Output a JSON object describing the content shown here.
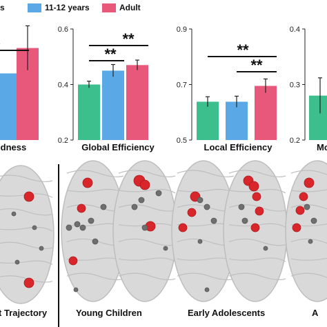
{
  "legend": {
    "items": [
      {
        "label": "11-12 years",
        "color": "#5aa9e6"
      },
      {
        "label": "Adult",
        "color": "#e8587a"
      }
    ]
  },
  "colors": {
    "group1": "#3cbf8c",
    "group2": "#5aa9e6",
    "group3": "#e8587a",
    "node_red": "#d8262b",
    "node_gray": "#6f6f6f"
  },
  "chart_data": [
    {
      "type": "bar",
      "title": "rldness",
      "categories": [
        "",
        "11-12 years",
        "Adult"
      ],
      "values": [
        null,
        1.42,
        1.58
      ],
      "errors": [
        null,
        0,
        0.14
      ],
      "significance": [
        {
          "label": "*",
          "bracket": "wide"
        }
      ]
    },
    {
      "type": "bar",
      "title": "Global Efficiency",
      "categories": [
        "",
        "11-12 years",
        "Adult"
      ],
      "values": [
        0.4,
        0.45,
        0.47
      ],
      "errors": [
        0.012,
        0.022,
        0.018
      ],
      "ylim": [
        0.2,
        0.6
      ],
      "yticks": [
        "0.2",
        "0.4",
        "0.6"
      ],
      "significance": [
        {
          "label": "**",
          "bars": [
            0,
            2
          ]
        },
        {
          "label": "**",
          "bars": [
            0,
            1
          ]
        }
      ]
    },
    {
      "type": "bar",
      "title": "Local Efficiency",
      "categories": [
        "",
        "11-12 years",
        "Adult"
      ],
      "values": [
        0.638,
        0.638,
        0.695
      ],
      "errors": [
        0.018,
        0.02,
        0.025
      ],
      "ylim": [
        0.5,
        0.9
      ],
      "yticks": [
        "0.5",
        "0.7",
        "0.9"
      ],
      "significance": [
        {
          "label": "**",
          "bars": [
            0,
            2
          ]
        },
        {
          "label": "**",
          "bars": [
            1,
            2
          ]
        }
      ]
    },
    {
      "type": "bar",
      "title": "Mo",
      "categories": [
        ""
      ],
      "values": [
        0.28
      ],
      "errors": [
        0.032
      ],
      "ylim": [
        0.2,
        0.4
      ],
      "yticks": [
        "0.2",
        "0.3",
        "0.4"
      ],
      "significance": []
    }
  ],
  "brains": {
    "labels": [
      "t Trajectory",
      "Young Children",
      "Early Adolescents",
      "A"
    ]
  }
}
